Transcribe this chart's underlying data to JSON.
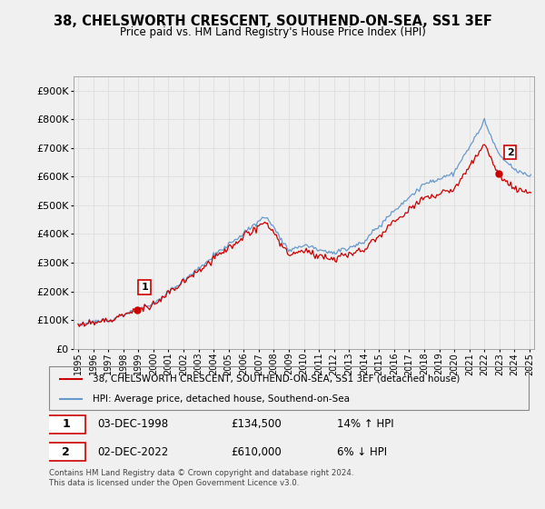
{
  "title": "38, CHELSWORTH CRESCENT, SOUTHEND-ON-SEA, SS1 3EF",
  "subtitle": "Price paid vs. HM Land Registry's House Price Index (HPI)",
  "sale1_date": "03-DEC-1998",
  "sale1_price": 134500,
  "sale1_hpi": "14% ↑ HPI",
  "sale1_label": "1",
  "sale2_date": "02-DEC-2022",
  "sale2_price": 610000,
  "sale2_hpi": "6% ↓ HPI",
  "sale2_label": "2",
  "legend1": "38, CHELSWORTH CRESCENT, SOUTHEND-ON-SEA, SS1 3EF (detached house)",
  "legend2": "HPI: Average price, detached house, Southend-on-Sea",
  "footer": "Contains HM Land Registry data © Crown copyright and database right 2024.\nThis data is licensed under the Open Government Licence v3.0.",
  "hpi_color": "#6699cc",
  "price_color": "#cc0000",
  "background_color": "#f0f0f0",
  "plot_bg_color": "#f0f0f0",
  "grid_color": "#dddddd",
  "ylim": [
    0,
    950000
  ],
  "yticks": [
    0,
    100000,
    200000,
    300000,
    400000,
    500000,
    600000,
    700000,
    800000,
    900000
  ],
  "xlim_start": 1994.7,
  "xlim_end": 2025.3
}
